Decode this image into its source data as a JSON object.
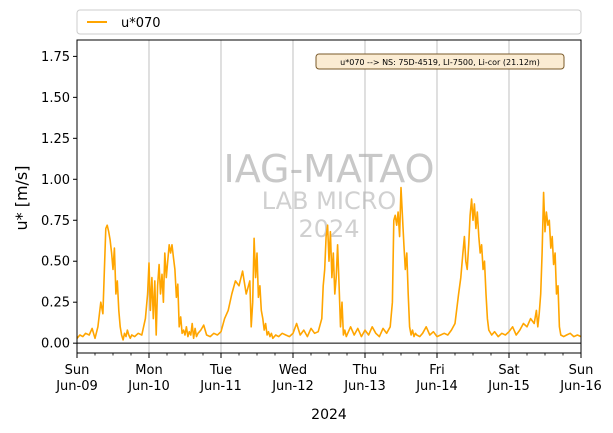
{
  "chart_data": {
    "type": "line",
    "title": "",
    "xlabel": "2024",
    "ylabel": "u* [m/s]",
    "ylim": [
      -0.06,
      1.85
    ],
    "yticks": [
      0.0,
      0.25,
      0.5,
      0.75,
      1.0,
      1.25,
      1.5,
      1.75
    ],
    "ytick_labels": [
      "0.00",
      "0.25",
      "0.50",
      "0.75",
      "1.00",
      "1.25",
      "1.50",
      "1.75"
    ],
    "xlim": [
      0,
      7
    ],
    "xticks": [
      {
        "day": 0,
        "weekday": "Sun",
        "date": "Jun-09"
      },
      {
        "day": 1,
        "weekday": "Mon",
        "date": "Jun-10"
      },
      {
        "day": 2,
        "weekday": "Tue",
        "date": "Jun-11"
      },
      {
        "day": 3,
        "weekday": "Wed",
        "date": "Jun-12"
      },
      {
        "day": 4,
        "weekday": "Thu",
        "date": "Jun-13"
      },
      {
        "day": 5,
        "weekday": "Fri",
        "date": "Jun-14"
      },
      {
        "day": 6,
        "weekday": "Sat",
        "date": "Jun-15"
      },
      {
        "day": 7,
        "weekday": "Sun",
        "date": "Jun-16"
      }
    ],
    "grid": "vertical at each day",
    "legend": {
      "placement": "top-outside",
      "entries": [
        "u*070"
      ]
    },
    "annotation": "u*070 --> NS: 75D-4519, LI-7500, Li-cor (21.12m)",
    "watermark": [
      "IAG-MATAO",
      "LAB MICRO",
      "2024"
    ],
    "series": [
      {
        "name": "u*070",
        "color": "#ffa500",
        "x_unit": "days since Jun-09 00:00",
        "x": [
          0.0,
          0.04,
          0.08,
          0.12,
          0.17,
          0.21,
          0.25,
          0.29,
          0.33,
          0.36,
          0.38,
          0.4,
          0.42,
          0.44,
          0.46,
          0.48,
          0.5,
          0.52,
          0.54,
          0.56,
          0.58,
          0.6,
          0.62,
          0.64,
          0.66,
          0.68,
          0.7,
          0.72,
          0.74,
          0.76,
          0.8,
          0.85,
          0.9,
          0.95,
          0.98,
          1.0,
          1.02,
          1.04,
          1.06,
          1.08,
          1.1,
          1.12,
          1.14,
          1.16,
          1.18,
          1.2,
          1.22,
          1.24,
          1.26,
          1.28,
          1.3,
          1.32,
          1.34,
          1.36,
          1.38,
          1.4,
          1.42,
          1.44,
          1.46,
          1.48,
          1.5,
          1.52,
          1.54,
          1.56,
          1.58,
          1.6,
          1.62,
          1.64,
          1.66,
          1.68,
          1.72,
          1.76,
          1.8,
          1.85,
          1.9,
          1.95,
          2.0,
          2.05,
          2.1,
          2.15,
          2.2,
          2.25,
          2.3,
          2.35,
          2.4,
          2.42,
          2.44,
          2.46,
          2.48,
          2.5,
          2.52,
          2.54,
          2.56,
          2.58,
          2.6,
          2.62,
          2.64,
          2.66,
          2.68,
          2.7,
          2.72,
          2.76,
          2.8,
          2.85,
          2.9,
          2.95,
          3.0,
          3.05,
          3.1,
          3.15,
          3.2,
          3.25,
          3.3,
          3.35,
          3.4,
          3.42,
          3.44,
          3.46,
          3.48,
          3.5,
          3.52,
          3.54,
          3.56,
          3.58,
          3.6,
          3.62,
          3.64,
          3.66,
          3.68,
          3.7,
          3.72,
          3.74,
          3.76,
          3.8,
          3.85,
          3.9,
          3.95,
          4.0,
          4.05,
          4.1,
          4.15,
          4.2,
          4.25,
          4.3,
          4.35,
          4.38,
          4.4,
          4.42,
          4.44,
          4.46,
          4.48,
          4.5,
          4.52,
          4.54,
          4.56,
          4.58,
          4.6,
          4.62,
          4.64,
          4.66,
          4.68,
          4.7,
          4.72,
          4.76,
          4.8,
          4.85,
          4.9,
          4.95,
          5.0,
          5.05,
          5.1,
          5.15,
          5.2,
          5.25,
          5.3,
          5.33,
          5.36,
          5.38,
          5.4,
          5.42,
          5.44,
          5.46,
          5.48,
          5.5,
          5.52,
          5.54,
          5.56,
          5.58,
          5.6,
          5.62,
          5.64,
          5.66,
          5.68,
          5.7,
          5.72,
          5.76,
          5.8,
          5.85,
          5.9,
          5.95,
          6.0,
          6.05,
          6.1,
          6.15,
          6.2,
          6.25,
          6.3,
          6.35,
          6.38,
          6.4,
          6.42,
          6.44,
          6.46,
          6.48,
          6.5,
          6.52,
          6.54,
          6.56,
          6.58,
          6.6,
          6.62,
          6.64,
          6.66,
          6.68,
          6.7,
          6.72,
          6.76,
          6.8,
          6.85,
          6.9,
          6.95,
          7.0
        ],
        "y": [
          0.03,
          0.05,
          0.04,
          0.06,
          0.05,
          0.09,
          0.03,
          0.1,
          0.25,
          0.18,
          0.45,
          0.7,
          0.72,
          0.68,
          0.63,
          0.55,
          0.45,
          0.58,
          0.3,
          0.38,
          0.2,
          0.1,
          0.05,
          0.02,
          0.06,
          0.04,
          0.08,
          0.05,
          0.03,
          0.05,
          0.04,
          0.06,
          0.05,
          0.15,
          0.3,
          0.49,
          0.2,
          0.4,
          0.15,
          0.38,
          0.05,
          0.35,
          0.48,
          0.3,
          0.42,
          0.25,
          0.55,
          0.4,
          0.5,
          0.6,
          0.55,
          0.6,
          0.52,
          0.45,
          0.28,
          0.36,
          0.1,
          0.16,
          0.06,
          0.08,
          0.05,
          0.1,
          0.04,
          0.07,
          0.05,
          0.12,
          0.03,
          0.09,
          0.04,
          0.06,
          0.08,
          0.11,
          0.05,
          0.04,
          0.06,
          0.05,
          0.07,
          0.15,
          0.2,
          0.3,
          0.38,
          0.35,
          0.44,
          0.3,
          0.38,
          0.1,
          0.25,
          0.64,
          0.4,
          0.55,
          0.28,
          0.35,
          0.2,
          0.15,
          0.08,
          0.12,
          0.05,
          0.07,
          0.04,
          0.06,
          0.03,
          0.05,
          0.04,
          0.06,
          0.05,
          0.04,
          0.06,
          0.12,
          0.05,
          0.08,
          0.04,
          0.09,
          0.06,
          0.07,
          0.15,
          0.35,
          0.45,
          0.65,
          0.72,
          0.5,
          0.68,
          0.4,
          0.55,
          0.3,
          0.4,
          0.6,
          0.35,
          0.1,
          0.25,
          0.05,
          0.08,
          0.04,
          0.06,
          0.1,
          0.05,
          0.09,
          0.04,
          0.08,
          0.05,
          0.1,
          0.06,
          0.04,
          0.09,
          0.06,
          0.1,
          0.25,
          0.75,
          0.78,
          0.72,
          0.8,
          0.65,
          0.95,
          0.78,
          0.6,
          0.45,
          0.55,
          0.3,
          0.1,
          0.05,
          0.08,
          0.04,
          0.06,
          0.05,
          0.04,
          0.06,
          0.1,
          0.05,
          0.07,
          0.04,
          0.05,
          0.06,
          0.05,
          0.08,
          0.12,
          0.3,
          0.4,
          0.55,
          0.65,
          0.5,
          0.45,
          0.6,
          0.78,
          0.88,
          0.75,
          0.85,
          0.7,
          0.8,
          0.65,
          0.55,
          0.6,
          0.45,
          0.5,
          0.3,
          0.15,
          0.08,
          0.05,
          0.07,
          0.04,
          0.06,
          0.05,
          0.07,
          0.1,
          0.05,
          0.08,
          0.12,
          0.1,
          0.15,
          0.12,
          0.2,
          0.1,
          0.18,
          0.3,
          0.55,
          0.92,
          0.68,
          0.8,
          0.72,
          0.75,
          0.58,
          0.65,
          0.48,
          0.55,
          0.3,
          0.35,
          0.1,
          0.05,
          0.04,
          0.05,
          0.06,
          0.04,
          0.05,
          0.04
        ]
      }
    ]
  }
}
